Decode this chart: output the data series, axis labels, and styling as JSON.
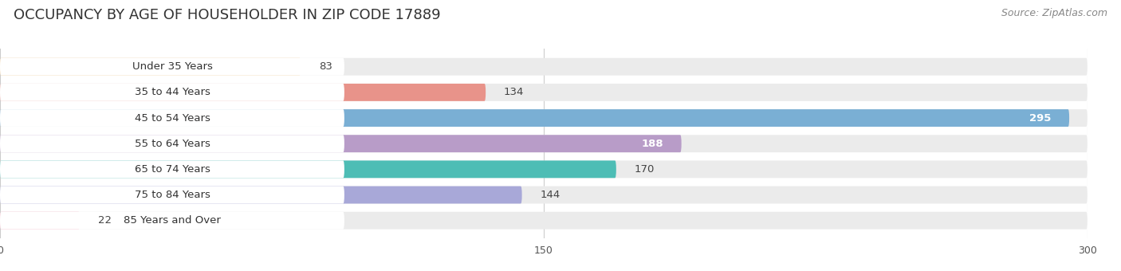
{
  "title": "OCCUPANCY BY AGE OF HOUSEHOLDER IN ZIP CODE 17889",
  "source": "Source: ZipAtlas.com",
  "categories": [
    "Under 35 Years",
    "35 to 44 Years",
    "45 to 54 Years",
    "55 to 64 Years",
    "65 to 74 Years",
    "75 to 84 Years",
    "85 Years and Over"
  ],
  "values": [
    83,
    134,
    295,
    188,
    170,
    144,
    22
  ],
  "bar_colors": [
    "#f5c98c",
    "#e8938a",
    "#7aafd4",
    "#b89cc8",
    "#4dbdb5",
    "#a8a8d8",
    "#f4a8bc"
  ],
  "bg_colors": [
    "#f5f5f5",
    "#f5f5f5",
    "#f5f5f5",
    "#f5f5f5",
    "#f5f5f5",
    "#f5f5f5",
    "#f5f5f5"
  ],
  "max_val": 300,
  "xticks": [
    0,
    150,
    300
  ],
  "title_fontsize": 13,
  "source_fontsize": 9,
  "bar_label_fontsize": 9.5,
  "value_fontsize": 9.5,
  "value_inside": [
    false,
    false,
    true,
    true,
    false,
    false,
    false
  ],
  "value_color_inside": "#ffffff",
  "value_color_outside": "#444444",
  "label_color": "#333333",
  "bg_figure": "#ffffff"
}
